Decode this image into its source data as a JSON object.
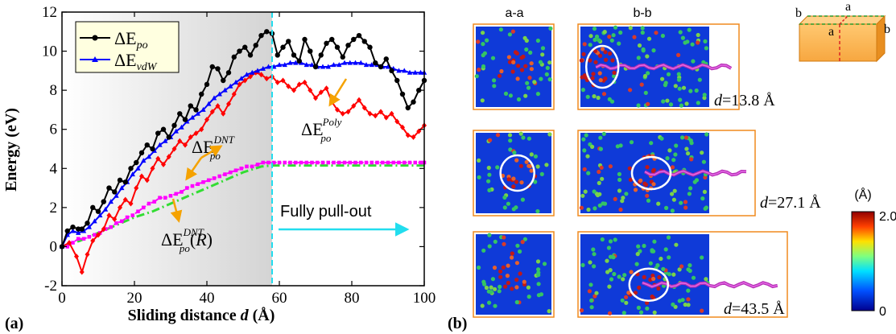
{
  "panel_a_label": "(a)",
  "panel_b_label": "(b)",
  "chart_data": {
    "type": "line",
    "xlabel": "Sliding distance d (Å)",
    "xlabel_main": "Sliding distance ",
    "xlabel_var": "d",
    "xlabel_unit": " (Å)",
    "ylabel": "Energy (eV)",
    "xlim": [
      0,
      100
    ],
    "ylim": [
      -2,
      12
    ],
    "x_ticks": [
      0,
      20,
      40,
      60,
      80,
      100
    ],
    "y_ticks": [
      -2,
      0,
      2,
      4,
      6,
      8,
      10,
      12
    ],
    "legend_position": "top-left",
    "shaded_region": [
      0,
      58
    ],
    "vline_x": 58,
    "series": [
      {
        "key": "po",
        "name": "ΔE_po",
        "color": "#000000",
        "marker": "circle",
        "x": [
          0,
          1.5,
          3,
          4.5,
          5.5,
          7,
          8.5,
          10,
          11.5,
          13,
          14.5,
          16,
          17.5,
          19,
          20.5,
          22,
          23.5,
          25,
          26.5,
          28,
          29.5,
          31,
          32.5,
          34,
          35.5,
          37,
          38.5,
          40,
          41.5,
          43,
          44.5,
          46,
          47.5,
          49,
          50.5,
          52,
          53.5,
          55,
          56.5,
          58,
          59.5,
          61,
          62.5,
          64,
          65.5,
          67,
          68.5,
          70,
          71.5,
          73,
          74.5,
          76,
          77.5,
          79,
          80.5,
          82,
          83.5,
          85,
          86.5,
          88,
          89.5,
          91,
          92.5,
          94,
          95.5,
          97,
          98.5,
          100
        ],
        "y": [
          0,
          0.8,
          1.0,
          0.9,
          0.9,
          1.2,
          2.0,
          1.8,
          2.3,
          3.0,
          2.8,
          3.4,
          3.3,
          4.0,
          4.3,
          4.8,
          5.2,
          5.0,
          5.8,
          6.0,
          5.6,
          6.2,
          6.8,
          6.5,
          7.2,
          7.0,
          7.8,
          8.3,
          9.2,
          9.1,
          8.5,
          8.9,
          9.7,
          10.0,
          10.2,
          9.8,
          10.3,
          10.8,
          11.0,
          10.9,
          9.8,
          10.2,
          10.5,
          9.8,
          9.5,
          10.6,
          10.0,
          9.2,
          9.8,
          10.4,
          10.6,
          10.2,
          9.7,
          10.3,
          10.6,
          10.8,
          10.5,
          10.2,
          9.4,
          9.2,
          9.6,
          9.0,
          8.5,
          7.8,
          7.1,
          7.4,
          8.0,
          8.5
        ]
      },
      {
        "key": "vdw",
        "name": "ΔE_vdW",
        "color": "#0000ff",
        "marker": "triangle",
        "x": [
          0,
          1.5,
          3,
          4.5,
          6,
          7.5,
          9,
          10.5,
          12,
          13.5,
          15,
          16.5,
          18,
          19.5,
          21,
          22.5,
          24,
          25.5,
          27,
          28.5,
          30,
          31.5,
          33,
          34.5,
          36,
          37.5,
          39,
          40.5,
          42,
          43.5,
          45,
          46.5,
          48,
          49.5,
          51,
          52.5,
          54,
          55.5,
          57,
          58.5,
          60,
          61.5,
          63,
          64.5,
          66,
          67.5,
          69,
          70.5,
          72,
          73.5,
          75,
          76.5,
          78,
          79.5,
          81,
          82.5,
          84,
          85.5,
          87,
          88.5,
          90,
          91.5,
          93,
          94.5,
          96,
          97.5,
          99,
          100
        ],
        "y": [
          0,
          0.6,
          0.8,
          0.7,
          0.8,
          1.0,
          1.3,
          1.6,
          1.9,
          2.3,
          2.6,
          3.0,
          3.3,
          3.7,
          4.0,
          4.4,
          4.6,
          4.9,
          5.2,
          5.4,
          5.6,
          5.9,
          6.1,
          6.4,
          6.6,
          6.8,
          7.0,
          7.3,
          7.6,
          7.8,
          8.0,
          8.2,
          8.4,
          8.6,
          8.8,
          8.9,
          9.0,
          9.1,
          9.2,
          9.2,
          9.3,
          9.3,
          9.4,
          9.4,
          9.4,
          9.3,
          9.3,
          9.2,
          9.2,
          9.2,
          9.3,
          9.3,
          9.4,
          9.4,
          9.4,
          9.4,
          9.3,
          9.3,
          9.3,
          9.2,
          9.2,
          9.1,
          9.0,
          9.0,
          8.9,
          8.9,
          8.9,
          8.9
        ]
      },
      {
        "key": "poly",
        "name": "ΔE_po^Poly",
        "color": "#ff0000",
        "marker": "diamond",
        "x": [
          0,
          2,
          4,
          5.5,
          7,
          8.5,
          10,
          11.5,
          13,
          14.5,
          16,
          17.5,
          19,
          20.5,
          22,
          23.5,
          25,
          26.5,
          28,
          29.5,
          31,
          32.5,
          34,
          35.5,
          37,
          38.5,
          40,
          41.5,
          43,
          44.5,
          46,
          47.5,
          49,
          50.5,
          52,
          53.5,
          55,
          56.5,
          58,
          59.5,
          61,
          62.5,
          64,
          65.5,
          67,
          68.5,
          70,
          71.5,
          73,
          74.5,
          76,
          77.5,
          79,
          80.5,
          82,
          83.5,
          85,
          86.5,
          88,
          89.5,
          91,
          92.5,
          94,
          95.5,
          97,
          98.5,
          100
        ],
        "y": [
          0,
          0.2,
          -0.5,
          -1.3,
          -0.4,
          0.3,
          0.6,
          0.9,
          1.6,
          1.4,
          2.0,
          2.4,
          2.2,
          3.0,
          3.6,
          3.4,
          4.0,
          4.5,
          4.2,
          4.6,
          5.0,
          5.4,
          5.2,
          5.6,
          5.8,
          6.0,
          6.5,
          6.9,
          7.2,
          6.8,
          7.3,
          7.8,
          8.3,
          8.5,
          8.7,
          8.9,
          8.8,
          8.6,
          8.7,
          8.4,
          8.5,
          8.2,
          8.0,
          8.3,
          8.4,
          8.0,
          7.6,
          7.9,
          8.1,
          7.4,
          7.0,
          6.8,
          6.9,
          7.2,
          7.5,
          7.1,
          6.8,
          6.7,
          6.9,
          6.6,
          6.8,
          6.4,
          6.1,
          5.7,
          5.6,
          5.9,
          6.2
        ]
      },
      {
        "key": "dnt",
        "name": "ΔE_po^DNT",
        "color": "#ff00ff",
        "marker": "square",
        "x": [
          0,
          1.5,
          3,
          4.5,
          6,
          7.5,
          9,
          10.5,
          12,
          13.5,
          15,
          16.5,
          18,
          19.5,
          21,
          22.5,
          24,
          25.5,
          27,
          28.5,
          30,
          31.5,
          33,
          34.5,
          36,
          37.5,
          39,
          40.5,
          42,
          43.5,
          45,
          46.5,
          48,
          49.5,
          51,
          52.5,
          54,
          55.5,
          57,
          58.5,
          60,
          61.5,
          63,
          64.5,
          66,
          67.5,
          69,
          70.5,
          72,
          73.5,
          75,
          76.5,
          78,
          79.5,
          81,
          82.5,
          84,
          85.5,
          87,
          88.5,
          90,
          91.5,
          93,
          94.5,
          96,
          97.5,
          99,
          100
        ],
        "y": [
          0,
          0.0,
          0.2,
          0.4,
          0.4,
          0.5,
          0.6,
          0.7,
          0.9,
          1.0,
          1.2,
          1.3,
          1.5,
          1.6,
          1.8,
          2.0,
          2.2,
          2.3,
          2.5,
          2.5,
          2.6,
          2.7,
          2.8,
          3.0,
          3.1,
          3.2,
          3.3,
          3.4,
          3.5,
          3.6,
          3.7,
          3.8,
          3.9,
          4.0,
          4.1,
          4.1,
          4.2,
          4.3,
          4.3,
          4.3,
          4.3,
          4.3,
          4.3,
          4.3,
          4.3,
          4.3,
          4.3,
          4.3,
          4.3,
          4.3,
          4.3,
          4.3,
          4.3,
          4.3,
          4.3,
          4.3,
          4.3,
          4.3,
          4.3,
          4.3,
          4.3,
          4.3,
          4.3,
          4.3,
          4.3,
          4.3,
          4.3,
          4.3
        ]
      },
      {
        "key": "dntr",
        "name": "ΔE_po^DNT(R)",
        "color": "#33dd33",
        "marker": "none",
        "x": [
          0,
          5,
          10,
          15,
          20,
          25,
          30,
          35,
          40,
          45,
          50,
          55,
          58,
          60,
          70,
          80,
          90,
          100
        ],
        "y": [
          0,
          0.3,
          0.7,
          1.1,
          1.5,
          1.8,
          2.2,
          2.6,
          3.0,
          3.4,
          3.8,
          4.1,
          4.15,
          4.15,
          4.15,
          4.15,
          4.15,
          4.15
        ]
      }
    ],
    "annotations": {
      "label_poly_x": 76,
      "label_poly_y": 5.3,
      "label_dnt_x": 37,
      "label_dnt_y": 3.2,
      "label_dntr_x": 35,
      "label_dntr_y": -0.5,
      "pullout_text": "Fully pull-out",
      "pullout_x": 60,
      "pullout_y": 1.8
    }
  },
  "panel_b": {
    "col_a_title": "a-a",
    "col_b_title": "b-b",
    "rows": [
      {
        "d_var": "d",
        "d_text": "=13.8 Å"
      },
      {
        "d_var": "d",
        "d_text": "=27.1 Å"
      },
      {
        "d_var": "d",
        "d_text": "=43.5 Å"
      }
    ],
    "box_label_b": "b",
    "box_label_a": "a",
    "colorbar_unit": "(Å)",
    "colorbar_max": "2.0",
    "colorbar_min": "0"
  }
}
